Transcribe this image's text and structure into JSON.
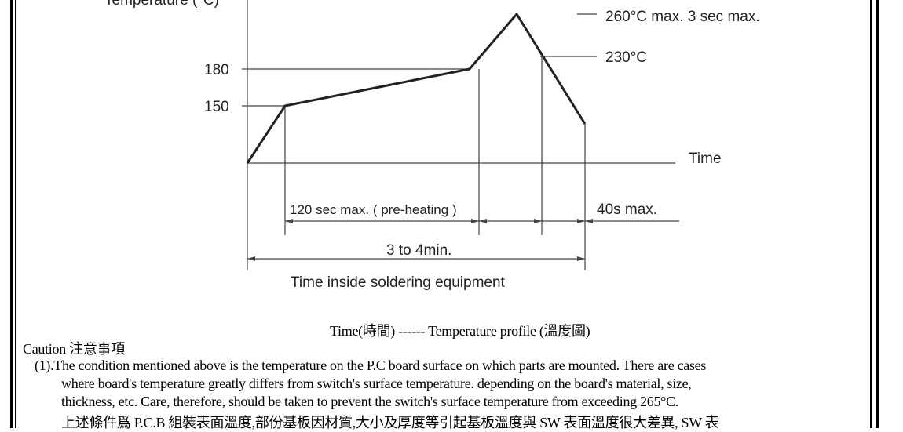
{
  "diagram": {
    "y_axis_label": "Temperature (°C)",
    "x_axis_label": "Time",
    "tick_180": "180",
    "tick_150": "150",
    "peak_label": "260°C max. 3 sec max.",
    "label_230": "230°C",
    "preheat_label": "120 sec max. ( pre-heating )",
    "label_40s": "40s max.",
    "total_label": "3 to 4min.",
    "inside_label": "Time inside soldering equipment"
  },
  "caption": "Time(時間) ------ Temperature profile (溫度圖)",
  "caution": {
    "heading": "Caution  注意事項",
    "lines": [
      "(1).The condition mentioned above is the temperature on the P.C board surface on which parts are mounted. There are cases",
      "where board's temperature greatly differs from switch's surface temperature. depending on the board's material, size,",
      "thickness, etc. Care, therefore, should be taken to prevent the switch's surface temperature from exceeding 265°C.",
      "上述條件爲 P.C.B 組裝表面溫度,部份基板因材質,大小及厚度等引起基板溫度與 SW 表面溫度很大差異, SW 表"
    ]
  }
}
